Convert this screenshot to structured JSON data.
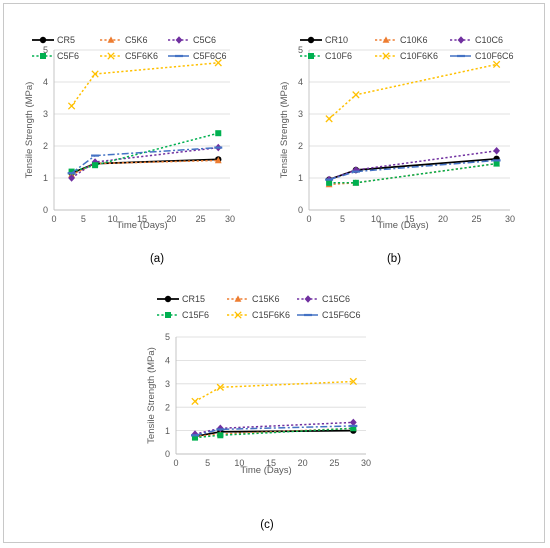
{
  "chart_data": [
    {
      "type": "line",
      "panel_label": "(a)",
      "xlabel": "Time (Days)",
      "ylabel": "Tensile Strength (MPa)",
      "xlim": [
        0,
        30
      ],
      "ylim": [
        0,
        5
      ],
      "xticks": [
        "0",
        "5",
        "10",
        "15",
        "20",
        "25",
        "30"
      ],
      "yticks": [
        "0",
        "1",
        "2",
        "3",
        "4",
        "5"
      ],
      "grid": true,
      "legend_position": "top",
      "series": [
        {
          "name": "CR5",
          "color": "#000000",
          "dash": "solid",
          "marker": "circle",
          "points": [
            [
              3,
              1.15
            ],
            [
              7,
              1.45
            ],
            [
              28,
              1.58
            ]
          ]
        },
        {
          "name": "C5K6",
          "color": "#ed7d31",
          "dash": "dotted",
          "marker": "triangle",
          "points": [
            [
              3,
              1.1
            ],
            [
              7,
              1.45
            ],
            [
              28,
              1.55
            ]
          ]
        },
        {
          "name": "C5C6",
          "color": "#7030a0",
          "dash": "dotted",
          "marker": "diamond",
          "points": [
            [
              3,
              1.0
            ],
            [
              7,
              1.5
            ],
            [
              28,
              1.95
            ]
          ]
        },
        {
          "name": "C5F6",
          "color": "#00b050",
          "dash": "dotted",
          "marker": "square",
          "points": [
            [
              3,
              1.2
            ],
            [
              7,
              1.4
            ],
            [
              28,
              2.4
            ]
          ]
        },
        {
          "name": "C5F6K6",
          "color": "#ffc000",
          "dash": "dotted",
          "marker": "x",
          "points": [
            [
              3,
              3.25
            ],
            [
              7,
              4.25
            ],
            [
              28,
              4.6
            ]
          ]
        },
        {
          "name": "C5F6C6",
          "color": "#4472c4",
          "dash": "dashdot",
          "marker": "dash",
          "points": [
            [
              3,
              1.15
            ],
            [
              7,
              1.7
            ],
            [
              28,
              1.95
            ]
          ]
        }
      ]
    },
    {
      "type": "line",
      "panel_label": "(b)",
      "xlabel": "Time (Days)",
      "ylabel": "Tensile Strength (MPa)",
      "xlim": [
        0,
        30
      ],
      "ylim": [
        0,
        5
      ],
      "xticks": [
        "0",
        "5",
        "10",
        "15",
        "20",
        "25",
        "30"
      ],
      "yticks": [
        "0",
        "1",
        "2",
        "3",
        "4",
        "5"
      ],
      "grid": true,
      "legend_position": "top",
      "series": [
        {
          "name": "CR10",
          "color": "#000000",
          "dash": "solid",
          "marker": "circle",
          "points": [
            [
              3,
              0.95
            ],
            [
              7,
              1.25
            ],
            [
              28,
              1.6
            ]
          ]
        },
        {
          "name": "C10K6",
          "color": "#ed7d31",
          "dash": "dotted",
          "marker": "triangle",
          "points": [
            [
              3,
              0.8
            ],
            [
              7,
              0.85
            ],
            [
              28,
              1.45
            ]
          ]
        },
        {
          "name": "C10C6",
          "color": "#7030a0",
          "dash": "dotted",
          "marker": "diamond",
          "points": [
            [
              3,
              0.95
            ],
            [
              7,
              1.25
            ],
            [
              28,
              1.85
            ]
          ]
        },
        {
          "name": "C10F6",
          "color": "#00b050",
          "dash": "dotted",
          "marker": "square",
          "points": [
            [
              3,
              0.85
            ],
            [
              7,
              0.85
            ],
            [
              28,
              1.45
            ]
          ]
        },
        {
          "name": "C10F6K6",
          "color": "#ffc000",
          "dash": "dotted",
          "marker": "x",
          "points": [
            [
              3,
              2.85
            ],
            [
              7,
              3.6
            ],
            [
              28,
              4.55
            ]
          ]
        },
        {
          "name": "C10F6C6",
          "color": "#4472c4",
          "dash": "dashdot",
          "marker": "dash",
          "points": [
            [
              3,
              0.95
            ],
            [
              7,
              1.2
            ],
            [
              28,
              1.55
            ]
          ]
        }
      ]
    },
    {
      "type": "line",
      "panel_label": "(c)",
      "xlabel": "Time (Days)",
      "ylabel": "Tensile Strength (MPa)",
      "xlim": [
        0,
        30
      ],
      "ylim": [
        0,
        5
      ],
      "xticks": [
        "0",
        "5",
        "10",
        "15",
        "20",
        "25",
        "30"
      ],
      "yticks": [
        "0",
        "1",
        "2",
        "3",
        "4",
        "5"
      ],
      "grid": true,
      "legend_position": "top",
      "series": [
        {
          "name": "CR15",
          "color": "#000000",
          "dash": "solid",
          "marker": "circle",
          "points": [
            [
              3,
              0.75
            ],
            [
              7,
              0.95
            ],
            [
              28,
              1.0
            ]
          ]
        },
        {
          "name": "C15K6",
          "color": "#ed7d31",
          "dash": "dotted",
          "marker": "triangle",
          "points": [
            [
              3,
              0.75
            ],
            [
              7,
              0.85
            ],
            [
              28,
              1.1
            ]
          ]
        },
        {
          "name": "C15C6",
          "color": "#7030a0",
          "dash": "dotted",
          "marker": "diamond",
          "points": [
            [
              3,
              0.85
            ],
            [
              7,
              1.1
            ],
            [
              28,
              1.35
            ]
          ]
        },
        {
          "name": "C15F6",
          "color": "#00b050",
          "dash": "dotted",
          "marker": "square",
          "points": [
            [
              3,
              0.7
            ],
            [
              7,
              0.8
            ],
            [
              28,
              1.1
            ]
          ]
        },
        {
          "name": "C15F6K6",
          "color": "#ffc000",
          "dash": "dotted",
          "marker": "x",
          "points": [
            [
              3,
              2.25
            ],
            [
              7,
              2.85
            ],
            [
              28,
              3.1
            ]
          ]
        },
        {
          "name": "C15F6C6",
          "color": "#4472c4",
          "dash": "dashdot",
          "marker": "dash",
          "points": [
            [
              3,
              0.8
            ],
            [
              7,
              1.05
            ],
            [
              28,
              1.2
            ]
          ]
        }
      ]
    }
  ]
}
